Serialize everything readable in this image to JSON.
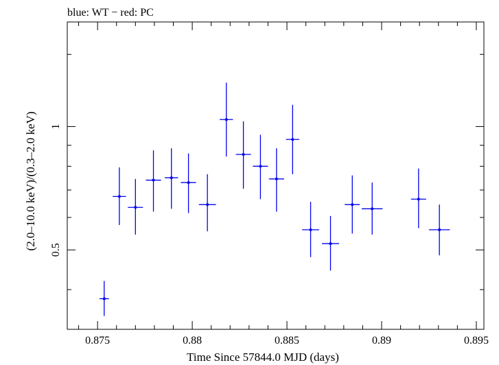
{
  "chart_data": {
    "type": "scatter",
    "title": "blue: WT − red: PC",
    "xlabel": "Time Since 57844.0 MJD (days)",
    "ylabel": "(2.0–10.0 keV)/(0.3–2.0 keV)",
    "xlim": [
      0.8734,
      0.8954
    ],
    "ylim": [
      0.32,
      1.8
    ],
    "yscale": "log",
    "x_ticks": [
      0.875,
      0.88,
      0.885,
      0.89,
      0.895
    ],
    "x_tick_labels": [
      "0.875",
      "0.88",
      "0.885",
      "0.89",
      "0.895"
    ],
    "y_ticks": [
      0.5,
      1
    ],
    "y_tick_labels": [
      "0.5",
      "1"
    ],
    "grid": false,
    "series": [
      {
        "name": "WT",
        "color": "#0000ee",
        "points": [
          {
            "x": 0.87535,
            "xerr": 0.00025,
            "y": 0.38,
            "ylo": 0.345,
            "yhi": 0.42
          },
          {
            "x": 0.87615,
            "xerr": 0.00035,
            "y": 0.675,
            "ylo": 0.575,
            "yhi": 0.795
          },
          {
            "x": 0.877,
            "xerr": 0.0004,
            "y": 0.635,
            "ylo": 0.545,
            "yhi": 0.745
          },
          {
            "x": 0.87795,
            "xerr": 0.0004,
            "y": 0.74,
            "ylo": 0.62,
            "yhi": 0.875
          },
          {
            "x": 0.8789,
            "xerr": 0.00035,
            "y": 0.75,
            "ylo": 0.63,
            "yhi": 0.885
          },
          {
            "x": 0.8798,
            "xerr": 0.0004,
            "y": 0.73,
            "ylo": 0.615,
            "yhi": 0.86
          },
          {
            "x": 0.8808,
            "xerr": 0.00045,
            "y": 0.645,
            "ylo": 0.555,
            "yhi": 0.765
          },
          {
            "x": 0.8818,
            "xerr": 0.00035,
            "y": 1.04,
            "ylo": 0.845,
            "yhi": 1.28
          },
          {
            "x": 0.8827,
            "xerr": 0.0004,
            "y": 0.855,
            "ylo": 0.705,
            "yhi": 1.03
          },
          {
            "x": 0.8836,
            "xerr": 0.0004,
            "y": 0.8,
            "ylo": 0.665,
            "yhi": 0.955
          },
          {
            "x": 0.88445,
            "xerr": 0.0004,
            "y": 0.745,
            "ylo": 0.62,
            "yhi": 0.885
          },
          {
            "x": 0.8853,
            "xerr": 0.00035,
            "y": 0.93,
            "ylo": 0.765,
            "yhi": 1.13
          },
          {
            "x": 0.88625,
            "xerr": 0.00045,
            "y": 0.56,
            "ylo": 0.48,
            "yhi": 0.655
          },
          {
            "x": 0.8873,
            "xerr": 0.00045,
            "y": 0.518,
            "ylo": 0.445,
            "yhi": 0.605
          },
          {
            "x": 0.88845,
            "xerr": 0.0004,
            "y": 0.645,
            "ylo": 0.548,
            "yhi": 0.76
          },
          {
            "x": 0.8895,
            "xerr": 0.00055,
            "y": 0.63,
            "ylo": 0.545,
            "yhi": 0.73
          },
          {
            "x": 0.89195,
            "xerr": 0.0004,
            "y": 0.665,
            "ylo": 0.565,
            "yhi": 0.79
          },
          {
            "x": 0.89305,
            "xerr": 0.00055,
            "y": 0.56,
            "ylo": 0.485,
            "yhi": 0.645
          }
        ]
      },
      {
        "name": "PC",
        "color": "#ee0000",
        "points": []
      }
    ]
  }
}
